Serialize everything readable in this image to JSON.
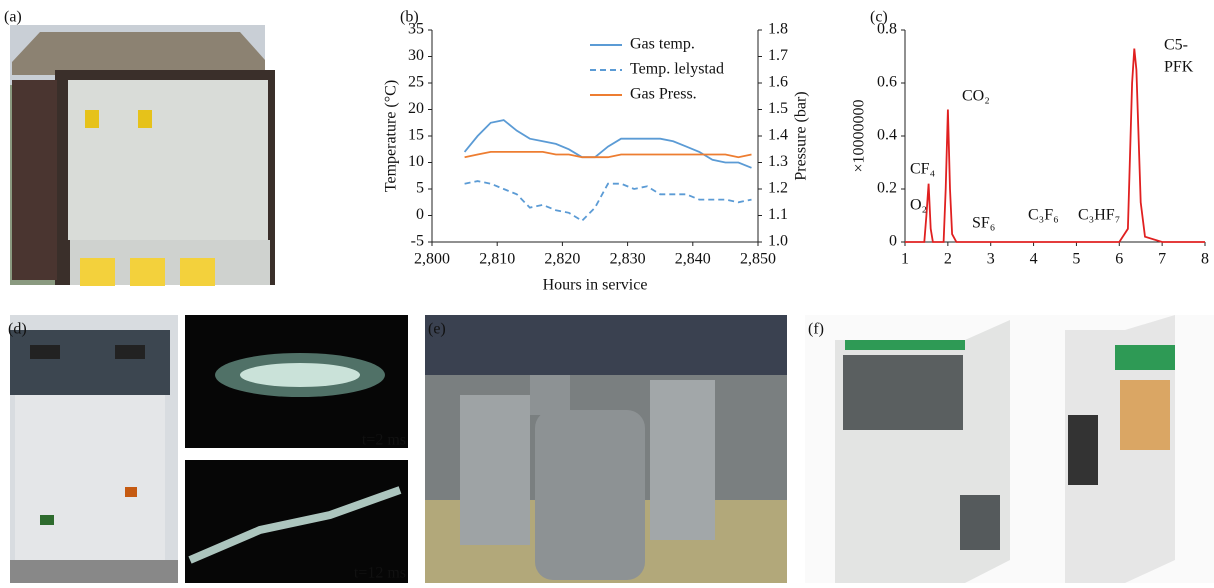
{
  "panels": [
    "(a)",
    "(b)",
    "(c)",
    "(d)",
    "(e)",
    "(f)"
  ],
  "captions": [
    "t=2 ms",
    "t=12 ms"
  ],
  "chart_data": [
    {
      "type": "line",
      "xlabel": "Hours in service",
      "ylabel": "Temperature (°C)",
      "y2label": "Pressure (bar)",
      "x": [
        2805,
        2807,
        2809,
        2811,
        2813,
        2815,
        2817,
        2819,
        2821,
        2823,
        2825,
        2827,
        2829,
        2831,
        2833,
        2835,
        2837,
        2839,
        2841,
        2843,
        2845,
        2847,
        2849
      ],
      "series": [
        {
          "name": "Gas temp.",
          "color": "#5b9bd5",
          "dash": false,
          "values": [
            12,
            15,
            17.5,
            18,
            16,
            14.5,
            14,
            13.5,
            12.5,
            11,
            11,
            13,
            14.5,
            14.5,
            14.5,
            14.5,
            14,
            13,
            12,
            10.5,
            10,
            10,
            9
          ]
        },
        {
          "name": "Temp. lelystad",
          "color": "#5b9bd5",
          "dash": true,
          "values": [
            6,
            6.5,
            6,
            5,
            4,
            1.5,
            2,
            1,
            0.5,
            -1,
            1.5,
            6,
            6,
            5,
            5.5,
            4,
            4,
            4,
            3,
            3,
            3,
            2.5,
            3
          ]
        },
        {
          "name": "Gas Press.",
          "color": "#ed7d31",
          "dash": false,
          "axis": "y2",
          "values": [
            1.32,
            1.33,
            1.34,
            1.34,
            1.34,
            1.34,
            1.34,
            1.33,
            1.33,
            1.32,
            1.32,
            1.32,
            1.33,
            1.33,
            1.33,
            1.33,
            1.33,
            1.33,
            1.33,
            1.33,
            1.33,
            1.32,
            1.33
          ]
        }
      ],
      "xlim": [
        2800,
        2850
      ],
      "xticks": [
        {
          "value": 2800,
          "label": "2,800"
        },
        {
          "value": 2810,
          "label": "2,810"
        },
        {
          "value": 2820,
          "label": "2,820"
        },
        {
          "value": 2830,
          "label": "2,830"
        },
        {
          "value": 2840,
          "label": "2,840"
        },
        {
          "value": 2850,
          "label": "2,850"
        }
      ],
      "ylim": [
        -5,
        35
      ],
      "yticks": [
        -5,
        0,
        5,
        10,
        15,
        20,
        25,
        30,
        35
      ],
      "y2lim": [
        1.0,
        1.8
      ],
      "y2ticks": [
        {
          "value": 1.0,
          "label": "1.0"
        },
        1.1,
        1.2,
        1.3,
        1.4,
        1.5,
        1.6,
        1.7,
        1.8
      ]
    },
    {
      "type": "line",
      "ylabel": "×10000000",
      "color": "#e02020",
      "x": [
        1,
        1.45,
        1.5,
        1.55,
        1.6,
        1.65,
        1.9,
        1.95,
        2.0,
        2.05,
        2.1,
        2.2,
        3,
        4,
        5,
        6,
        6.2,
        6.3,
        6.35,
        6.4,
        6.5,
        6.6,
        7,
        8
      ],
      "values": [
        0,
        0,
        0.1,
        0.22,
        0.05,
        0,
        0,
        0.2,
        0.5,
        0.2,
        0.03,
        0,
        0,
        0,
        0,
        0,
        0.05,
        0.6,
        0.73,
        0.65,
        0.15,
        0.02,
        0,
        0
      ],
      "xlim": [
        1,
        8
      ],
      "xticks": [
        1,
        2,
        3,
        4,
        5,
        6,
        7,
        8
      ],
      "ylim": [
        0,
        0.8
      ],
      "yticks": [
        0,
        0.2,
        0.4,
        0.6,
        0.8
      ],
      "annotations": [
        "O₂",
        "CF₄",
        "CO₂",
        "SF₆",
        "C₃F₆",
        "C₃HF₇",
        "C5-",
        "PFK"
      ]
    }
  ]
}
